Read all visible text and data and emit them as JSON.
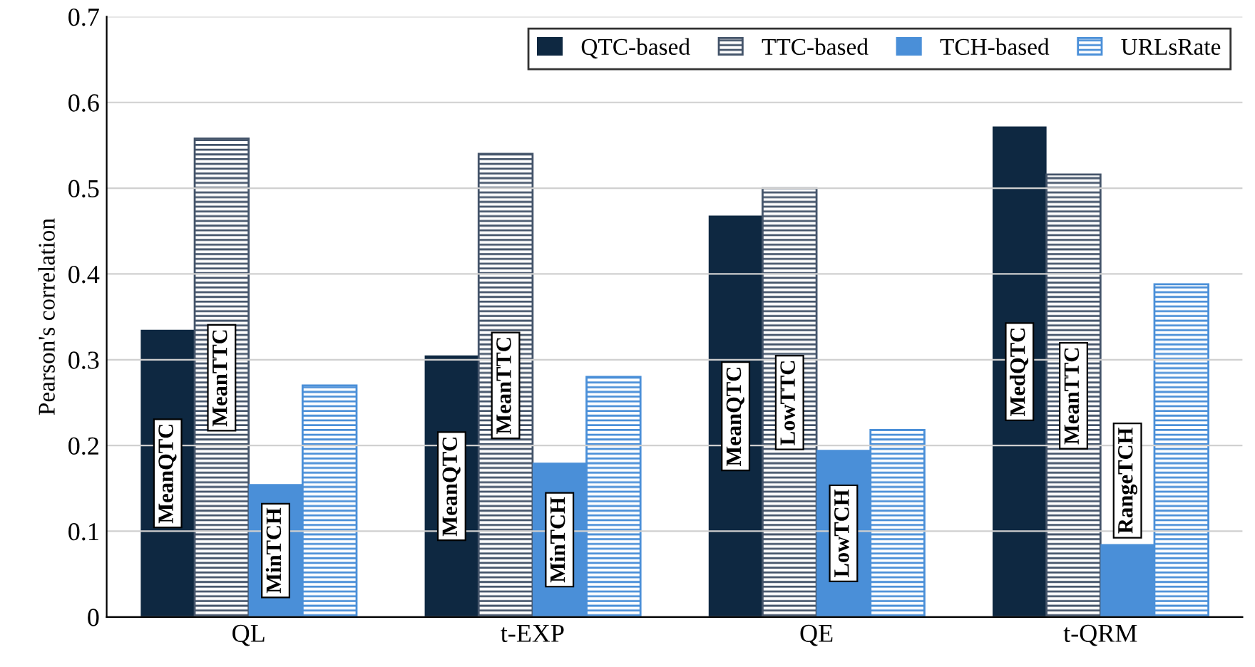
{
  "chart_data": {
    "type": "bar",
    "ylabel": "Pearson's correlation",
    "categories": [
      "QL",
      "t-EXP",
      "QE",
      "t-QRM"
    ],
    "series": [
      {
        "name": "QTC-based",
        "color": "#0e2841",
        "values": [
          0.335,
          0.305,
          0.468,
          0.572
        ],
        "value_labels": [
          "MeanQTC",
          "MeanQTC",
          "MeanQTC",
          "MedQTC"
        ]
      },
      {
        "name": "TTC-based",
        "color": "#44546a",
        "values": [
          0.558,
          0.54,
          0.5,
          0.516
        ],
        "value_labels": [
          "MeanTTC",
          "MeanTTC",
          "LowTTC",
          "MeanTTC"
        ]
      },
      {
        "name": "TCH-based",
        "color": "#4a8fd8",
        "values": [
          0.155,
          0.18,
          0.195,
          0.085
        ],
        "value_labels": [
          "MinTCH",
          "MinTCH",
          "LowTCH",
          "RangeTCH"
        ]
      },
      {
        "name": "URLsRate",
        "color": "#4a8fd8",
        "values": [
          0.27,
          0.28,
          0.218,
          0.388
        ]
      }
    ],
    "ylim": [
      0,
      0.7
    ],
    "yticks": [
      0,
      0.1,
      0.2,
      0.3,
      0.4,
      0.5,
      0.6,
      0.7
    ],
    "grid": "y",
    "legend": "top right"
  }
}
